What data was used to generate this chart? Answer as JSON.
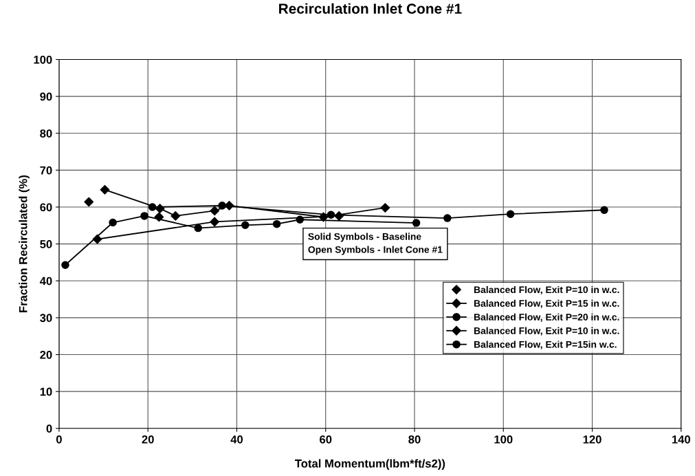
{
  "chart_data": {
    "type": "line",
    "title": "Recirculation Inlet Cone #1",
    "xlabel": "Total Momentum(lbm*ft/s2))",
    "ylabel": "Fraction Recirculated (%)",
    "xlim": [
      0,
      140
    ],
    "xticks": [
      0,
      20,
      40,
      60,
      80,
      100,
      120,
      140
    ],
    "ylim": [
      0,
      100
    ],
    "yticks": [
      0,
      10,
      20,
      30,
      40,
      50,
      60,
      70,
      80,
      90,
      100
    ],
    "grid": true,
    "legend": "bottom right",
    "annotations": [
      "Solid Symbols - Baseline\nOpen Symbols - Inlet Cone #1"
    ],
    "series": [
      {
        "name": "Balanced Flow, Exit P=10 in w.c.",
        "type": "scatter",
        "color": "#000000",
        "marker": "diamond",
        "x": [
          6.7,
          22.5
        ],
        "values": [
          61.4,
          57.3
        ]
      },
      {
        "name": "Balanced Flow, Exit P=15 in w.c.",
        "color": "#000000",
        "marker": "diamond",
        "line_style": "solid",
        "x": [
          10.3,
          22.7,
          26.2,
          35,
          38.3,
          59.5,
          73.4
        ],
        "values": [
          64.7,
          59.6,
          57.6,
          59,
          60.4,
          57.3,
          59.8
        ]
      },
      {
        "name": "Balanced Flow, Exit P=20 in w.c.",
        "color": "#000000",
        "marker": "circle",
        "line_style": "solid",
        "x": [
          21,
          36.7,
          61.2,
          87.4,
          101.6,
          122.7
        ],
        "values": [
          60,
          60.4,
          57.9,
          57,
          58.1,
          59.2
        ]
      },
      {
        "name": "Balanced Flow, Exit P=10 in w.c.",
        "color": "#000000",
        "marker": "diamond",
        "line_style": "solid",
        "x": [
          8.6,
          35,
          63
        ],
        "values": [
          51.3,
          56,
          57.6
        ]
      },
      {
        "name": "Balanced Flow, Exit P=15in w.c.",
        "color": "#000000",
        "marker": "circle",
        "line_style": "solid",
        "x": [
          1.4,
          12.1,
          19.2,
          31.3,
          41.9,
          49,
          54.2,
          80.4
        ],
        "values": [
          44.3,
          55.8,
          57.6,
          54.3,
          55.1,
          55.4,
          56.6,
          55.7
        ]
      }
    ]
  }
}
